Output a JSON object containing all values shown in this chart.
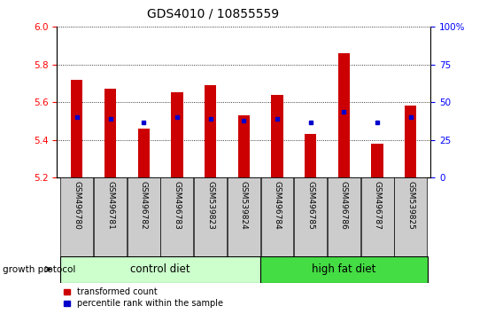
{
  "title": "GDS4010 / 10855559",
  "samples": [
    "GSM496780",
    "GSM496781",
    "GSM496782",
    "GSM496783",
    "GSM539823",
    "GSM539824",
    "GSM496784",
    "GSM496785",
    "GSM496786",
    "GSM496787",
    "GSM539825"
  ],
  "red_values": [
    5.72,
    5.67,
    5.46,
    5.65,
    5.69,
    5.53,
    5.64,
    5.43,
    5.86,
    5.38,
    5.58
  ],
  "blue_values": [
    5.52,
    5.51,
    5.49,
    5.52,
    5.51,
    5.5,
    5.51,
    5.49,
    5.55,
    5.49,
    5.52
  ],
  "ylim_left": [
    5.2,
    6.0
  ],
  "ylim_right": [
    0,
    100
  ],
  "yticks_left": [
    5.2,
    5.4,
    5.6,
    5.8,
    6.0
  ],
  "yticks_right": [
    0,
    25,
    50,
    75,
    100
  ],
  "ytick_labels_right": [
    "0",
    "25",
    "50",
    "75",
    "100%"
  ],
  "control_diet_count": 6,
  "high_fat_diet_count": 5,
  "control_label": "control diet",
  "high_fat_label": "high fat diet",
  "growth_protocol_label": "growth protocol",
  "legend_red": "transformed count",
  "legend_blue": "percentile rank within the sample",
  "bar_color": "#cc0000",
  "dot_color": "#0000cc",
  "control_bg_light": "#ccffcc",
  "high_fat_bg": "#44dd44",
  "sample_bg": "#cccccc",
  "baseline": 5.2,
  "bar_width": 0.35
}
